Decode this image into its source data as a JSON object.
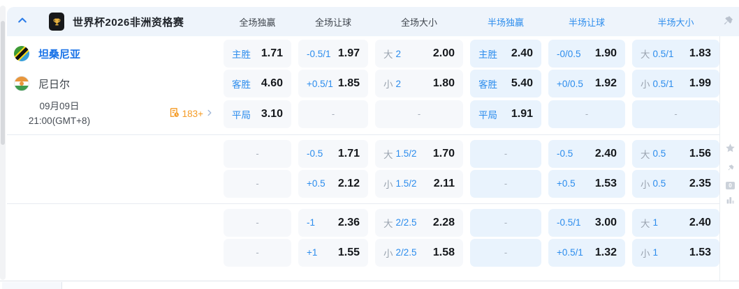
{
  "colors": {
    "header_bg": "#eef4fb",
    "accent_blue": "#2b8ced",
    "team_blue": "#1a73e8",
    "value_dark": "#15181c",
    "full_cell_bg": "#f6f8fb",
    "half_cell_bg": "#e9f3fd",
    "orange": "#f59b25"
  },
  "header": {
    "title": "世界杯2026非洲资格赛",
    "collapse_icon": "chevron-up-icon",
    "league_icon": "world-cup-trophy-icon",
    "pin_icon": "pushpin-icon",
    "columns": [
      {
        "label": "全场独赢",
        "tone": "full"
      },
      {
        "label": "全场让球",
        "tone": "full"
      },
      {
        "label": "全场大小",
        "tone": "full"
      },
      {
        "label": "半场独赢",
        "tone": "half"
      },
      {
        "label": "半场让球",
        "tone": "half"
      },
      {
        "label": "半场大小",
        "tone": "half"
      }
    ]
  },
  "match": {
    "home": "坦桑尼亚",
    "away": "尼日尔",
    "date_line1": "09月09日",
    "date_line2": "21:00(GMT+8)",
    "more_markets_count": "183+",
    "more_markets_icon": "markets-list-clock-icon",
    "more_markets_chevron": "chevron-right-icon"
  },
  "groups": [
    {
      "rows": [
        {
          "cells": [
            {
              "label": "主胜",
              "value": "1.71"
            },
            {
              "label": "-0.5/1",
              "value": "1.97"
            },
            {
              "prefix": "大",
              "handicap": "2",
              "value": "2.00"
            },
            {
              "label": "主胜",
              "value": "2.40"
            },
            {
              "label": "-0/0.5",
              "value": "1.90"
            },
            {
              "prefix": "大",
              "handicap": "0.5/1",
              "value": "1.83"
            }
          ]
        },
        {
          "cells": [
            {
              "label": "客胜",
              "value": "4.60"
            },
            {
              "label": "+0.5/1",
              "value": "1.85"
            },
            {
              "prefix": "小",
              "handicap": "2",
              "value": "1.80"
            },
            {
              "label": "客胜",
              "value": "5.40"
            },
            {
              "label": "+0/0.5",
              "value": "1.92"
            },
            {
              "prefix": "小",
              "handicap": "0.5/1",
              "value": "1.99"
            }
          ]
        },
        {
          "cells": [
            {
              "label": "平局",
              "value": "3.10"
            },
            {
              "dash": "-"
            },
            {
              "dash": "-"
            },
            {
              "label": "平局",
              "value": "1.91"
            },
            {
              "dash": "-"
            },
            {
              "dash": "-"
            }
          ]
        }
      ]
    },
    {
      "rows": [
        {
          "cells": [
            {
              "dash": "-"
            },
            {
              "label": "-0.5",
              "value": "1.71"
            },
            {
              "prefix": "大",
              "handicap": "1.5/2",
              "value": "1.70"
            },
            {
              "dash": "-"
            },
            {
              "label": "-0.5",
              "value": "2.40"
            },
            {
              "prefix": "大",
              "handicap": "0.5",
              "value": "1.56"
            }
          ]
        },
        {
          "cells": [
            {
              "dash": "-"
            },
            {
              "label": "+0.5",
              "value": "2.12"
            },
            {
              "prefix": "小",
              "handicap": "1.5/2",
              "value": "2.11"
            },
            {
              "dash": "-"
            },
            {
              "label": "+0.5",
              "value": "1.53"
            },
            {
              "prefix": "小",
              "handicap": "0.5",
              "value": "2.35"
            }
          ]
        }
      ]
    },
    {
      "rows": [
        {
          "cells": [
            {
              "dash": "-"
            },
            {
              "label": "-1",
              "value": "2.36"
            },
            {
              "prefix": "大",
              "handicap": "2/2.5",
              "value": "2.28"
            },
            {
              "dash": "-"
            },
            {
              "label": "-0.5/1",
              "value": "3.00"
            },
            {
              "prefix": "大",
              "handicap": "1",
              "value": "2.40"
            }
          ]
        },
        {
          "cells": [
            {
              "dash": "-"
            },
            {
              "label": "+1",
              "value": "1.55"
            },
            {
              "prefix": "小",
              "handicap": "2/2.5",
              "value": "1.58"
            },
            {
              "dash": "-"
            },
            {
              "label": "+0.5/1",
              "value": "1.32"
            },
            {
              "prefix": "小",
              "handicap": "1",
              "value": "1.53"
            }
          ]
        }
      ]
    }
  ],
  "right_rail": {
    "icons": [
      "star-icon",
      "pushpin-icon",
      "corner-stat-icon",
      "bar-chart-icon"
    ],
    "corner_stat_label": "0"
  }
}
